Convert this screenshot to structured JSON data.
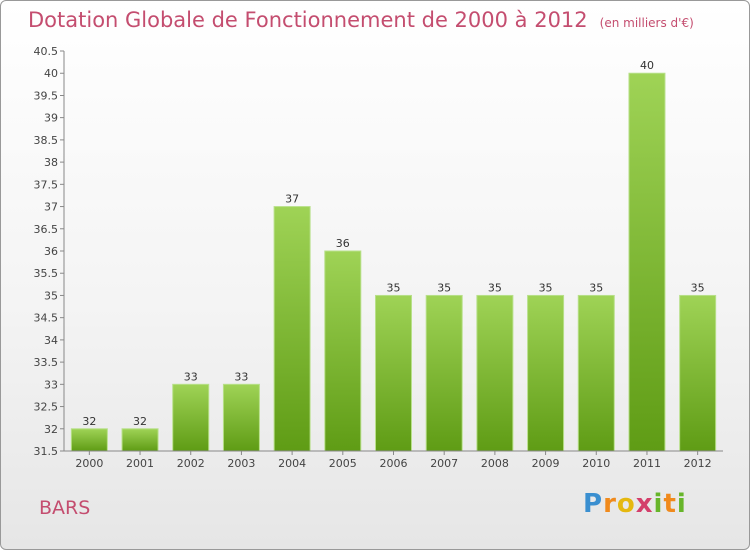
{
  "title": "Dotation Globale de Fonctionnement de 2000 à 2012",
  "subtitle": "(en milliers d'€)",
  "commune": "BARS",
  "logo": "Proxiti",
  "colors": {
    "title": "#c44d6f",
    "bar_top": "#9fd356",
    "bar_bottom": "#5f9c15",
    "axis": "#888888"
  },
  "chart_data": {
    "type": "bar",
    "title": "Dotation Globale de Fonctionnement de 2000 à 2012",
    "subtitle": "(en milliers d'€)",
    "categories": [
      "2000",
      "2001",
      "2002",
      "2003",
      "2004",
      "2005",
      "2006",
      "2007",
      "2008",
      "2009",
      "2010",
      "2011",
      "2012"
    ],
    "values": [
      32,
      32,
      33,
      33,
      37,
      36,
      35,
      35,
      35,
      35,
      35,
      40,
      35
    ],
    "ylim": [
      31.5,
      40.5
    ],
    "yticks": [
      31.5,
      32,
      32.5,
      33,
      33.5,
      34,
      34.5,
      35,
      35.5,
      36,
      36.5,
      37,
      37.5,
      38,
      38.5,
      39,
      39.5,
      40,
      40.5
    ],
    "grid": false,
    "data_labels": true
  }
}
